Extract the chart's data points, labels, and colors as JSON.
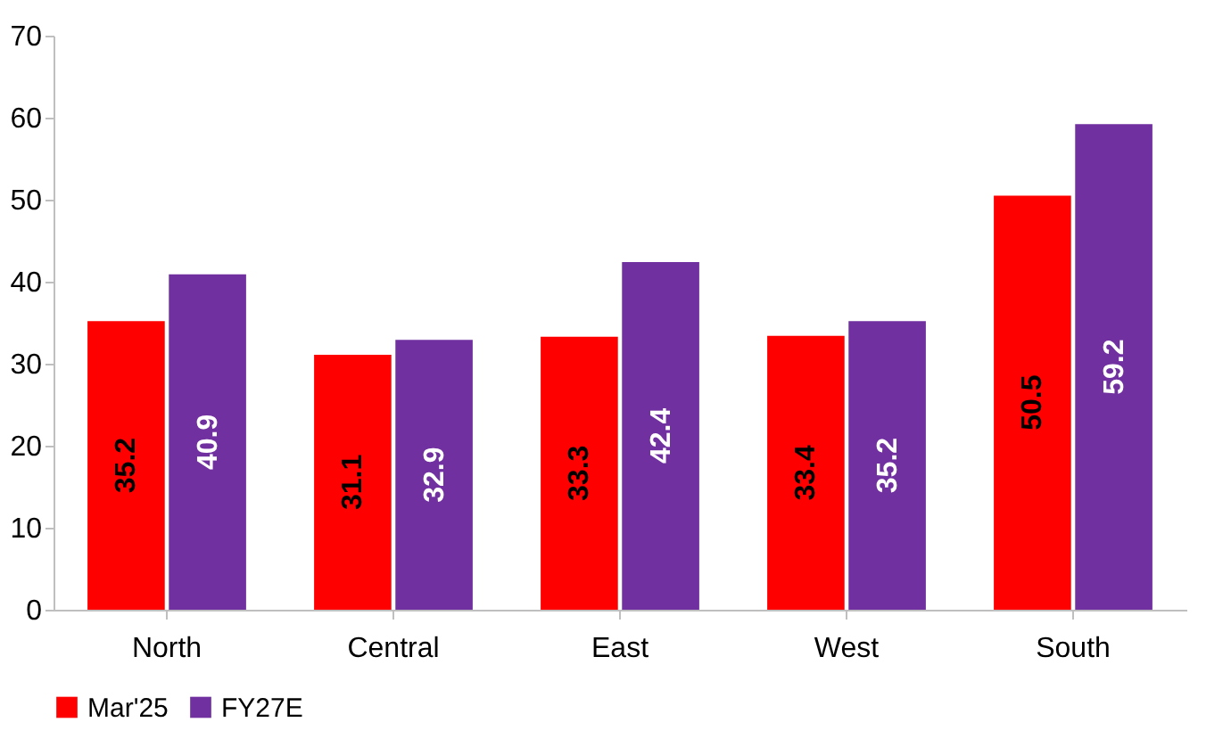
{
  "chart_data": {
    "type": "bar",
    "categories": [
      "North",
      "Central",
      "East",
      "West",
      "South"
    ],
    "series": [
      {
        "name": "Mar'25",
        "color": "#ff0000",
        "values": [
          35.2,
          31.1,
          33.3,
          33.4,
          50.5
        ]
      },
      {
        "name": "FY27E",
        "color": "#7030a0",
        "values": [
          40.9,
          32.9,
          42.4,
          35.2,
          59.2
        ]
      }
    ],
    "ylim": [
      0,
      70
    ],
    "yticks": [
      0,
      10,
      20,
      30,
      40,
      50,
      60,
      70
    ],
    "grid": false,
    "legend": "bottom",
    "data_labels": true
  }
}
